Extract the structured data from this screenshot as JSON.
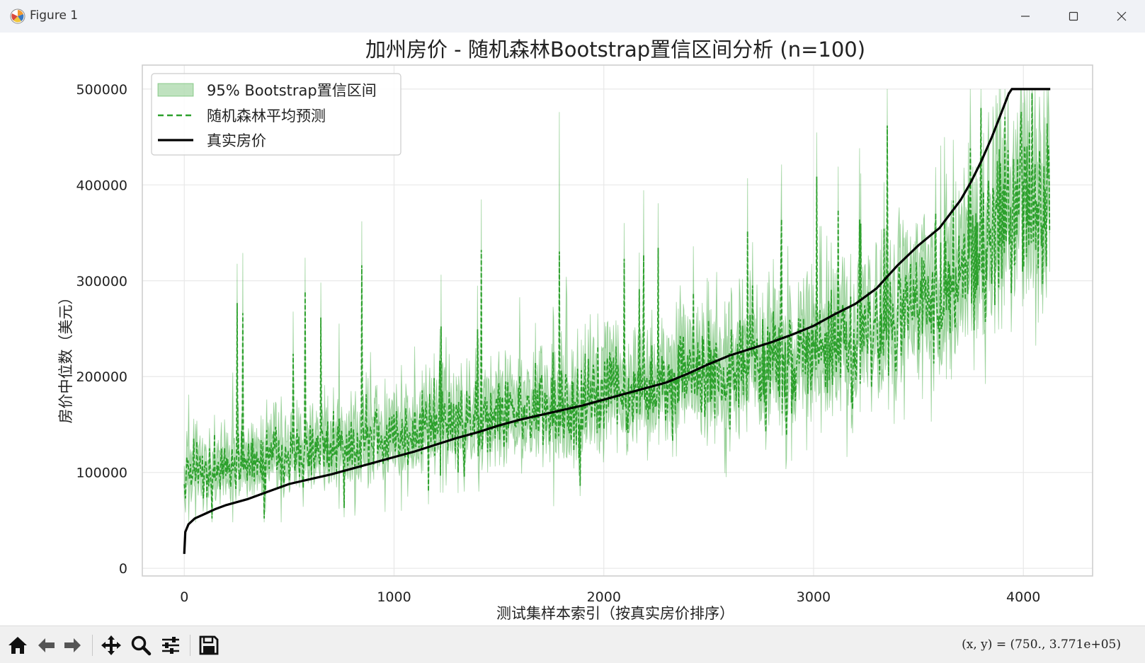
{
  "window": {
    "title": "Figure 1"
  },
  "chart_data": {
    "type": "line",
    "title": "加州房价 - 随机森林Bootstrap置信区间分析 (n=100)",
    "xlabel": "测试集样本索引（按真实房价排序）",
    "ylabel": "房价中位数（美元）",
    "xlim": [
      -200,
      4330
    ],
    "ylim": [
      -8000,
      525000
    ],
    "x_ticks": [
      0,
      1000,
      2000,
      3000,
      4000
    ],
    "x_tick_labels": [
      "0",
      "1000",
      "2000",
      "3000",
      "4000"
    ],
    "y_ticks": [
      0,
      100000,
      200000,
      300000,
      400000,
      500000
    ],
    "y_tick_labels": [
      "0",
      "100000",
      "200000",
      "300000",
      "400000",
      "500000"
    ],
    "grid": true,
    "legend_position": "upper-left",
    "n_points": 4128,
    "series": [
      {
        "name": "95% Bootstrap置信区间",
        "kind": "band",
        "color": "#2ca02c",
        "opacity": 0.3
      },
      {
        "name": "随机森林平均预测",
        "kind": "line",
        "style": "dashed",
        "color": "#2ca02c"
      },
      {
        "name": "真实房价",
        "kind": "line",
        "style": "solid",
        "color": "#000000",
        "x": [
          0,
          5,
          20,
          50,
          100,
          150,
          200,
          300,
          400,
          500,
          600,
          700,
          800,
          900,
          1000,
          1100,
          1200,
          1300,
          1400,
          1500,
          1600,
          1700,
          1800,
          1900,
          2000,
          2100,
          2200,
          2300,
          2400,
          2500,
          2600,
          2700,
          2800,
          2900,
          3000,
          3100,
          3200,
          3300,
          3400,
          3500,
          3600,
          3700,
          3750,
          3800,
          3850,
          3900,
          3930,
          3945,
          4000,
          4128
        ],
        "values": [
          15000,
          38000,
          46000,
          52000,
          57000,
          62000,
          66000,
          72000,
          80000,
          88000,
          93000,
          98000,
          104000,
          110000,
          116000,
          122000,
          129000,
          136000,
          142000,
          149000,
          155000,
          160000,
          165000,
          170000,
          176000,
          182000,
          188000,
          194000,
          203000,
          213000,
          222000,
          229000,
          236000,
          244000,
          253000,
          265000,
          276000,
          292000,
          316000,
          337000,
          355000,
          384000,
          403000,
          425000,
          450000,
          478000,
          495000,
          500000,
          500000,
          500000
        ]
      }
    ]
  },
  "toolbar": {
    "coords_text": "(x, y) = (750., 3.771e+05)"
  }
}
